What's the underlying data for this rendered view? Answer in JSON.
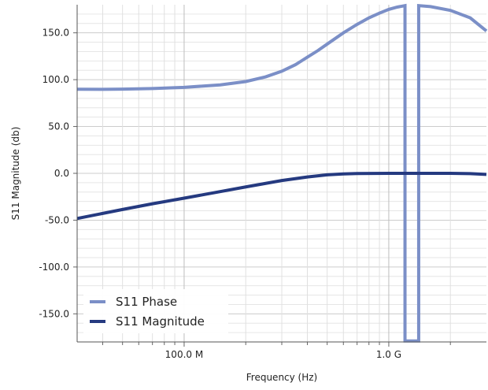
{
  "chart_data": {
    "type": "line",
    "xlabel": "Frequency (Hz)",
    "ylabel": "S11 Magnitude (db)",
    "x_scale": "log",
    "xlim": [
      30000000,
      3000000000
    ],
    "ylim": [
      -180,
      180
    ],
    "grid": true,
    "legend_position": "bottom-left",
    "x_ticks": [
      {
        "value": 100000000,
        "label": "100.0 M"
      },
      {
        "value": 1000000000,
        "label": "1.0 G"
      }
    ],
    "y_ticks": [
      {
        "value": 150,
        "label": "150.0"
      },
      {
        "value": 100,
        "label": "100.0"
      },
      {
        "value": 50,
        "label": "50.0"
      },
      {
        "value": 0,
        "label": "0.0"
      },
      {
        "value": -50,
        "label": "-50.0"
      },
      {
        "value": -100,
        "label": "-100.0"
      },
      {
        "value": -150,
        "label": "-150.0"
      }
    ],
    "series": [
      {
        "name": "S11 Phase",
        "color": "#7b8fc7",
        "points": [
          [
            30000000,
            89.8
          ],
          [
            40000000,
            89.7
          ],
          [
            50000000,
            89.9
          ],
          [
            70000000,
            90.5
          ],
          [
            100000000,
            91.8
          ],
          [
            150000000,
            94.4
          ],
          [
            200000000,
            98
          ],
          [
            250000000,
            103
          ],
          [
            300000000,
            109
          ],
          [
            350000000,
            116
          ],
          [
            400000000,
            124
          ],
          [
            450000000,
            131
          ],
          [
            500000000,
            138
          ],
          [
            600000000,
            150
          ],
          [
            700000000,
            159
          ],
          [
            800000000,
            166
          ],
          [
            900000000,
            171
          ],
          [
            1000000000,
            175
          ],
          [
            1100000000,
            177.5
          ],
          [
            1200000000,
            179
          ],
          [
            1200000001,
            -179
          ],
          [
            1400000000,
            -179
          ],
          [
            1400000001,
            179
          ],
          [
            1600000000,
            178
          ],
          [
            2000000000,
            174
          ],
          [
            2500000000,
            166
          ],
          [
            3000000000,
            152
          ]
        ]
      },
      {
        "name": "S11 Magnitude",
        "color": "#253a80",
        "points": [
          [
            30000000,
            -48.2
          ],
          [
            50000000,
            -38.6
          ],
          [
            70000000,
            -32.5
          ],
          [
            100000000,
            -26.5
          ],
          [
            150000000,
            -19.5
          ],
          [
            200000000,
            -14.5
          ],
          [
            300000000,
            -7.7
          ],
          [
            400000000,
            -3.9
          ],
          [
            500000000,
            -1.6
          ],
          [
            600000000,
            -0.6
          ],
          [
            700000000,
            -0.2
          ],
          [
            1000000000,
            0
          ],
          [
            2000000000,
            0
          ],
          [
            2500000000,
            -0.3
          ],
          [
            3000000000,
            -1.2
          ]
        ]
      }
    ]
  }
}
